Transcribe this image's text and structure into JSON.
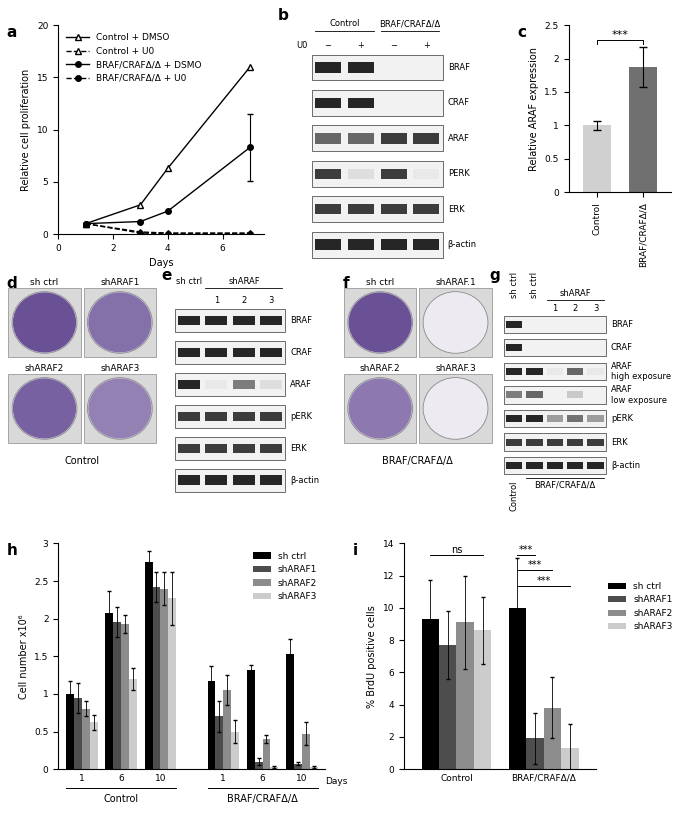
{
  "chart_data": [
    {
      "panel": "a",
      "type": "line",
      "x": [
        1,
        3,
        4,
        7
      ],
      "series": [
        {
          "name": "Control + DMSO",
          "color": "#000000",
          "marker": "triangle_open",
          "line_style": "solid",
          "values": [
            1,
            2.8,
            6.3,
            16
          ]
        },
        {
          "name": "Control + U0",
          "color": "#000000",
          "marker": "triangle_open",
          "line_style": "dashed",
          "values": [
            1,
            0.2,
            0.1,
            0.1
          ]
        },
        {
          "name": "BRAF/CRAFΔ/Δ + DSMO",
          "color": "#000000",
          "marker": "circle",
          "line_style": "solid",
          "values": [
            1,
            1.2,
            2.2,
            8.3
          ],
          "errors": [
            0,
            0,
            0,
            3.2
          ]
        },
        {
          "name": "BRAF/CRAFΔ/Δ + U0",
          "color": "#000000",
          "marker": "circle",
          "line_style": "dashed",
          "values": [
            1,
            0.1,
            0.05,
            0.05
          ]
        }
      ],
      "xlabel": "Days",
      "ylabel": "Relative cell proliferation",
      "xlim": [
        0,
        7.5
      ],
      "ylim": [
        0,
        20
      ],
      "xticks": [
        0,
        2,
        4,
        6
      ],
      "yticks": [
        0,
        5,
        10,
        15,
        20
      ],
      "legend": "upper left"
    },
    {
      "panel": "c",
      "type": "bar",
      "categories": [
        "Control",
        "BRAF/CRAFΔ/Δ"
      ],
      "values": [
        1,
        1.87
      ],
      "errors": [
        0.07,
        0.3
      ],
      "colors": [
        "#d0d0d0",
        "#707070"
      ],
      "ylabel": "Relative ARAF expression",
      "ylim": [
        0,
        2.5
      ],
      "yticks": [
        0,
        0.5,
        1,
        1.5,
        2,
        2.5
      ],
      "annotations": [
        {
          "text": "***",
          "between": [
            "Control",
            "BRAF/CRAFΔ/Δ"
          ]
        }
      ]
    },
    {
      "panel": "h",
      "type": "bar",
      "categories": [
        "1",
        "6",
        "10",
        "1",
        "6",
        "10"
      ],
      "groups": [
        "Control",
        "BRAF/CRAFΔ/Δ"
      ],
      "xlabel": "Days",
      "ylabel": "Cell number x10⁶",
      "series": [
        {
          "name": "sh ctrl",
          "color": "#000000",
          "values": [
            1.0,
            2.07,
            2.75,
            1.17,
            1.32,
            1.53
          ],
          "errors": [
            0.17,
            0.3,
            0.15,
            0.2,
            0.07,
            0.2
          ]
        },
        {
          "name": "shARAF1",
          "color": "#4d4d4d",
          "values": [
            0.95,
            1.95,
            2.42,
            0.7,
            0.1,
            0.07
          ],
          "errors": [
            0.2,
            0.2,
            0.2,
            0.2,
            0.05,
            0.02
          ]
        },
        {
          "name": "shARAF2",
          "color": "#8c8c8c",
          "values": [
            0.8,
            1.93,
            2.4,
            1.05,
            0.4,
            0.47
          ],
          "errors": [
            0.1,
            0.12,
            0.22,
            0.2,
            0.05,
            0.15
          ]
        },
        {
          "name": "shARAF3",
          "color": "#cccccc",
          "values": [
            0.62,
            1.2,
            2.27,
            0.5,
            0.03,
            0.03
          ],
          "errors": [
            0.1,
            0.15,
            0.35,
            0.15,
            0.01,
            0.01
          ]
        }
      ],
      "ylim": [
        0,
        3
      ],
      "yticks": [
        0,
        0.5,
        1,
        1.5,
        2,
        2.5,
        3
      ],
      "legend": "upper right"
    },
    {
      "panel": "i",
      "type": "bar",
      "categories": [
        "Control",
        "BRAF/CRAFΔ/Δ"
      ],
      "ylabel": "% BrdU positive cells",
      "series": [
        {
          "name": "sh ctrl",
          "color": "#000000",
          "values": [
            9.3,
            10.0
          ],
          "errors": [
            2.4,
            3.1
          ]
        },
        {
          "name": "shARAF1",
          "color": "#4d4d4d",
          "values": [
            7.7,
            1.9
          ],
          "errors": [
            2.1,
            1.6
          ]
        },
        {
          "name": "shARAF2",
          "color": "#8c8c8c",
          "values": [
            9.1,
            3.8
          ],
          "errors": [
            2.9,
            1.9
          ]
        },
        {
          "name": "shARAF3",
          "color": "#cccccc",
          "values": [
            8.6,
            1.3
          ],
          "errors": [
            2.1,
            1.5
          ]
        }
      ],
      "ylim": [
        0,
        14
      ],
      "yticks": [
        0,
        2,
        4,
        6,
        8,
        10,
        12,
        14
      ],
      "legend": "right",
      "annotations": [
        {
          "text": "ns",
          "category": "Control",
          "between": [
            "sh ctrl",
            "shARAF3"
          ]
        },
        {
          "text": "***",
          "category": "BRAF/CRAFΔ/Δ",
          "between": [
            "sh ctrl",
            "shARAF1"
          ]
        },
        {
          "text": "***",
          "category": "BRAF/CRAFΔ/Δ",
          "between": [
            "sh ctrl",
            "shARAF2"
          ]
        },
        {
          "text": "***",
          "category": "BRAF/CRAFΔ/Δ",
          "between": [
            "sh ctrl",
            "shARAF3"
          ]
        }
      ]
    }
  ],
  "blots": [
    {
      "panel": "b",
      "header_groups": [
        {
          "label": "Control",
          "lanes": 2
        },
        {
          "label": "BRAF/CRAFΔ/Δ",
          "lanes": 2
        }
      ],
      "lane_labels_title": "U0",
      "lane_labels": [
        "−",
        "+",
        "−",
        "+"
      ],
      "rows": [
        {
          "label": "BRAF",
          "bands": [
            1,
            1,
            0,
            0
          ]
        },
        {
          "label": "CRAF",
          "bands": [
            1,
            1,
            0,
            0
          ]
        },
        {
          "label": "ARAF",
          "bands": [
            0.7,
            0.7,
            0.9,
            0.9
          ]
        },
        {
          "label": "PERK",
          "bands": [
            0.9,
            0.15,
            0.9,
            0.1
          ]
        },
        {
          "label": "ERK",
          "bands": [
            0.9,
            0.9,
            0.9,
            0.9
          ]
        },
        {
          "label": "β-actin",
          "bands": [
            1,
            1,
            1,
            1
          ]
        }
      ]
    },
    {
      "panel": "e",
      "header_groups": [
        {
          "label": "sh ctrl",
          "lanes": 1
        },
        {
          "label": "shARAF",
          "lanes": 3
        }
      ],
      "lane_labels": [
        null,
        "1",
        "2",
        "3"
      ],
      "rows": [
        {
          "label": "BRAF",
          "bands": [
            1,
            1,
            1,
            1
          ]
        },
        {
          "label": "CRAF",
          "bands": [
            1,
            1,
            1,
            1
          ]
        },
        {
          "label": "ARAF",
          "bands": [
            1,
            0.1,
            0.6,
            0.15
          ]
        },
        {
          "label": "pERK",
          "bands": [
            0.9,
            0.9,
            0.9,
            0.9
          ]
        },
        {
          "label": "ERK",
          "bands": [
            0.9,
            0.9,
            0.9,
            0.9
          ]
        },
        {
          "label": "β-actin",
          "bands": [
            1,
            1,
            1,
            1
          ]
        }
      ]
    },
    {
      "panel": "g",
      "header_groups": [
        {
          "label": "sh ctrl",
          "lanes": 1
        },
        {
          "label": "sh ctrl",
          "lanes": 1
        },
        {
          "label": "shARAF",
          "lanes": 3
        }
      ],
      "lane_labels": [
        null,
        null,
        "1",
        "2",
        "3"
      ],
      "footer_groups": [
        {
          "label": "Control",
          "lanes": 1
        },
        {
          "label": "BRAF/CRAFΔ/Δ",
          "lanes": 4
        }
      ],
      "rows": [
        {
          "label": "BRAF",
          "bands": [
            1,
            0,
            0,
            0,
            0
          ]
        },
        {
          "label": "CRAF",
          "bands": [
            1,
            0,
            0,
            0,
            0
          ]
        },
        {
          "label": "ARAF\nhigh exposure",
          "bands": [
            1,
            1,
            0.1,
            0.7,
            0.1
          ]
        },
        {
          "label": "ARAF\nlow exposure",
          "bands": [
            0.6,
            0.7,
            0,
            0.25,
            0
          ]
        },
        {
          "label": "pERK",
          "bands": [
            1,
            1,
            0.45,
            0.65,
            0.45
          ]
        },
        {
          "label": "ERK",
          "bands": [
            0.9,
            0.9,
            0.9,
            0.9,
            0.9
          ]
        },
        {
          "label": "β-actin",
          "bands": [
            1,
            1,
            1,
            1,
            1
          ]
        }
      ]
    }
  ],
  "plates": [
    {
      "panel": "d",
      "caption": "Control",
      "wells": [
        {
          "label": "sh ctrl",
          "density": 1
        },
        {
          "label": "shARAF1",
          "density": 0.8
        },
        {
          "label": "shARAF2",
          "density": 0.9
        },
        {
          "label": "shARAF3",
          "density": 0.7
        }
      ]
    },
    {
      "panel": "f",
      "caption": "BRAF/CRAFΔ/Δ",
      "wells": [
        {
          "label": "sh ctrl",
          "density": 1
        },
        {
          "label": "shARAF.1",
          "density": 0.05
        },
        {
          "label": "shARAF.2",
          "density": 0.75
        },
        {
          "label": "shARAF.3",
          "density": 0.05
        }
      ]
    }
  ]
}
